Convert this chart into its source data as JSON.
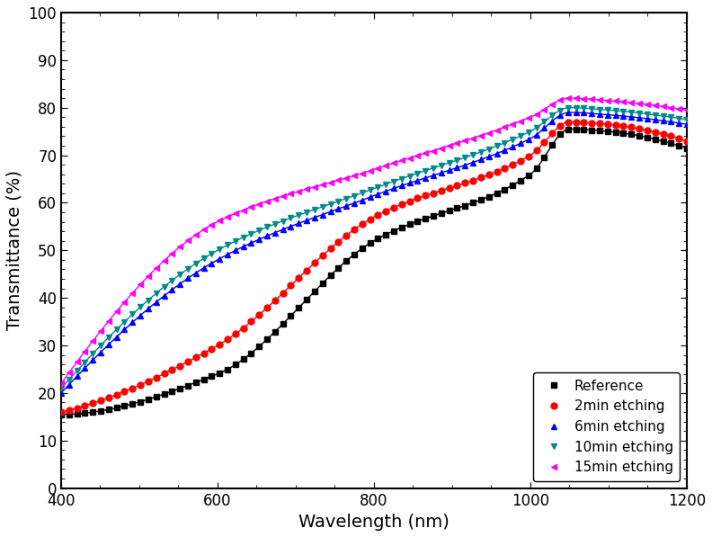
{
  "title": "",
  "xlabel": "Wavelength (nm)",
  "ylabel": "Transmittance (%)",
  "xlim": [
    400,
    1200
  ],
  "ylim": [
    0,
    100
  ],
  "xticks": [
    400,
    600,
    800,
    1000,
    1200
  ],
  "yticks": [
    0,
    10,
    20,
    30,
    40,
    50,
    60,
    70,
    80,
    90,
    100
  ],
  "series": [
    {
      "label": "Reference",
      "color": "black",
      "marker": "s",
      "y400": 15.5,
      "y600": 24.0,
      "y800": 52.0,
      "y1000": 66.0,
      "y1050": 75.5,
      "y1100": 75.0,
      "y1200": 71.5
    },
    {
      "label": "2min etching",
      "color": "red",
      "marker": "o",
      "y400": 16.0,
      "y600": 30.0,
      "y800": 57.0,
      "y1000": 70.0,
      "y1050": 77.0,
      "y1100": 76.5,
      "y1200": 73.0
    },
    {
      "label": "6min etching",
      "color": "blue",
      "marker": "^",
      "y400": 20.0,
      "y600": 48.0,
      "y800": 61.5,
      "y1000": 73.5,
      "y1050": 79.0,
      "y1100": 78.5,
      "y1200": 76.5
    },
    {
      "label": "10min etching",
      "color": "#008B8B",
      "marker": "v",
      "y400": 21.0,
      "y600": 50.0,
      "y800": 63.0,
      "y1000": 75.0,
      "y1050": 80.0,
      "y1100": 79.5,
      "y1200": 77.5
    },
    {
      "label": "15min etching",
      "color": "magenta",
      "marker": "<",
      "y400": 22.0,
      "y600": 56.0,
      "y800": 67.0,
      "y1000": 78.0,
      "y1050": 82.0,
      "y1100": 81.5,
      "y1200": 79.5
    }
  ],
  "figsize": [
    7.92,
    5.97
  ],
  "dpi": 100
}
